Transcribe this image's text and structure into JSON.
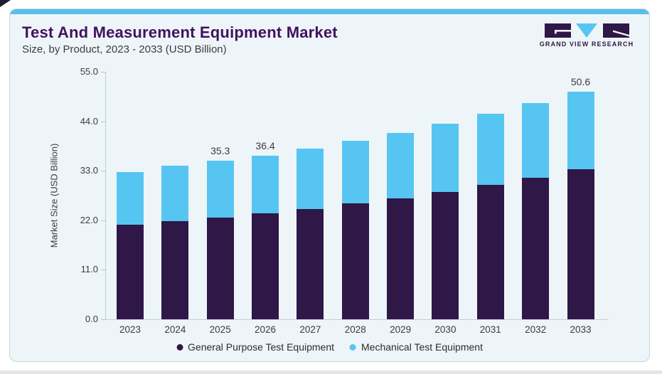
{
  "page": {
    "background": "#ffffff"
  },
  "card": {
    "title": "Test And Measurement Equipment Market",
    "subtitle": "Size, by Product, 2023 - 2033 (USD Billion)",
    "title_color": "#41125e",
    "background": "#eef5f9",
    "top_strip_color": "#57bfea",
    "border_color": "#c9d3db"
  },
  "logo": {
    "text": "GRAND VIEW RESEARCH",
    "purple": "#2f1747",
    "blue": "#57c5f2"
  },
  "chart_data": {
    "type": "bar",
    "stacked": true,
    "title": "Test And Measurement Equipment Market Size, by Product, 2023 - 2033 (USD Billion)",
    "categories": [
      "2023",
      "2024",
      "2025",
      "2026",
      "2027",
      "2028",
      "2029",
      "2030",
      "2031",
      "2032",
      "2033"
    ],
    "series": [
      {
        "name": "General Purpose Test Equipment",
        "color": "#2f1747",
        "values": [
          21.0,
          21.8,
          22.6,
          23.5,
          24.5,
          25.7,
          26.9,
          28.3,
          29.9,
          31.5,
          33.4
        ]
      },
      {
        "name": "Mechanical Test Equipment",
        "color": "#57c5f2",
        "values": [
          11.7,
          12.3,
          12.7,
          12.9,
          13.4,
          13.9,
          14.5,
          15.2,
          15.7,
          16.5,
          17.2
        ]
      }
    ],
    "totals": [
      32.7,
      34.1,
      35.3,
      36.4,
      37.9,
      39.6,
      41.4,
      43.5,
      45.6,
      48.0,
      50.6
    ],
    "total_labels": {
      "2025": "35.3",
      "2026": "36.4",
      "2033": "50.6"
    },
    "xlabel": "",
    "ylabel": "Market Size (USD Billion)",
    "ylim": [
      0,
      55
    ],
    "yticks": [
      "0.0",
      "11.0",
      "22.0",
      "33.0",
      "44.0",
      "55.0"
    ],
    "grid": false,
    "legend_position": "bottom"
  }
}
